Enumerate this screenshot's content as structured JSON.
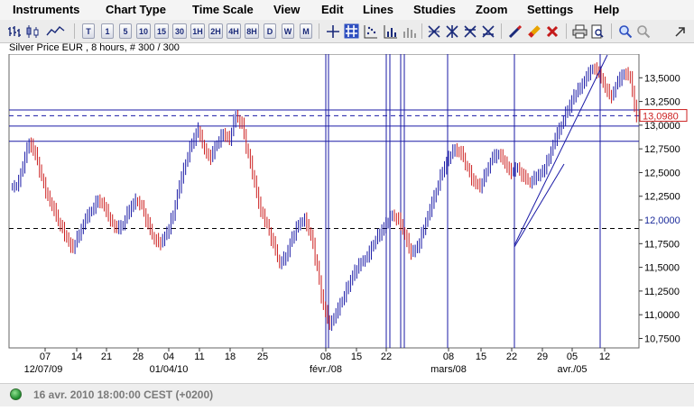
{
  "menu": [
    "Instruments",
    "Chart Type",
    "Time Scale",
    "View",
    "Edit",
    "Lines",
    "Studies",
    "Zoom",
    "Settings",
    "Help"
  ],
  "toolbar": {
    "timescale_buttons": [
      "T",
      "1",
      "5",
      "10",
      "15",
      "30",
      "1H",
      "2H",
      "4H",
      "8H",
      "D",
      "W",
      "M"
    ]
  },
  "chart_title": "Silver Price EUR , 8 hours, # 300 / 300",
  "price_label": "13,0980",
  "status": {
    "text": "16 avr. 2010 18:00:00  CEST (+0200)"
  },
  "colors": {
    "candle_up": "#1a1aa6",
    "candle_down": "#cc1f1f",
    "price_label": "#cc1f1f",
    "guide_line": "#1a1aa6",
    "accent": "#1a2a7a"
  },
  "chart_data": {
    "type": "candlestick",
    "title": "Silver Price EUR , 8 hours, # 300 / 300",
    "ylim": [
      10.65,
      13.75
    ],
    "yticks": [
      "13,5000",
      "13,2500",
      "13,0000",
      "12,7500",
      "12,5000",
      "12,2500",
      "12,0000",
      "11,7500",
      "11,5000",
      "11,2500",
      "11,0000",
      "10,7500"
    ],
    "ytick_values": [
      13.5,
      13.25,
      13.0,
      12.75,
      12.5,
      12.25,
      12.0,
      11.75,
      11.5,
      11.25,
      11.0,
      10.75
    ],
    "xticks_day": [
      "07",
      "14",
      "21",
      "28",
      "04",
      "11",
      "18",
      "25",
      "08",
      "15",
      "22",
      "08",
      "15",
      "22",
      "29",
      "05",
      "12"
    ],
    "xticks_period": [
      "12/07/09",
      "01/04/10",
      "févr./08",
      "mars/08",
      "avr./05"
    ],
    "horizontal_lines": [
      {
        "value": 13.16,
        "style": "solid"
      },
      {
        "value": 13.1,
        "style": "dashed"
      },
      {
        "value": 12.99,
        "style": "solid"
      },
      {
        "value": 12.83,
        "style": "solid"
      },
      {
        "value": 11.91,
        "style": "dashed",
        "color": "#000000"
      }
    ],
    "last_price": 13.098,
    "series": [
      {
        "name": "close",
        "values": [
          12.35,
          12.55,
          12.82,
          12.7,
          12.45,
          12.25,
          12.1,
          11.95,
          11.8,
          11.7,
          11.85,
          12.0,
          12.1,
          12.2,
          12.15,
          12.0,
          11.9,
          11.95,
          12.1,
          12.2,
          12.15,
          11.95,
          11.8,
          11.75,
          11.85,
          12.05,
          12.35,
          12.6,
          12.8,
          12.95,
          12.75,
          12.65,
          12.8,
          12.9,
          12.85,
          13.1,
          13.0,
          12.7,
          12.4,
          12.1,
          11.95,
          11.75,
          11.55,
          11.6,
          11.8,
          11.95,
          12.0,
          11.85,
          11.5,
          11.1,
          10.9,
          11.0,
          11.15,
          11.3,
          11.45,
          11.55,
          11.6,
          11.75,
          11.85,
          11.95,
          12.05,
          12.0,
          11.85,
          11.65,
          11.7,
          11.9,
          12.1,
          12.3,
          12.5,
          12.65,
          12.75,
          12.7,
          12.55,
          12.4,
          12.35,
          12.5,
          12.65,
          12.7,
          12.6,
          12.5,
          12.55,
          12.45,
          12.4,
          12.45,
          12.5,
          12.65,
          12.85,
          13.0,
          13.15,
          13.3,
          13.4,
          13.5,
          13.6,
          13.55,
          13.4,
          13.3,
          13.45,
          13.55,
          13.5,
          13.1
        ]
      }
    ]
  }
}
